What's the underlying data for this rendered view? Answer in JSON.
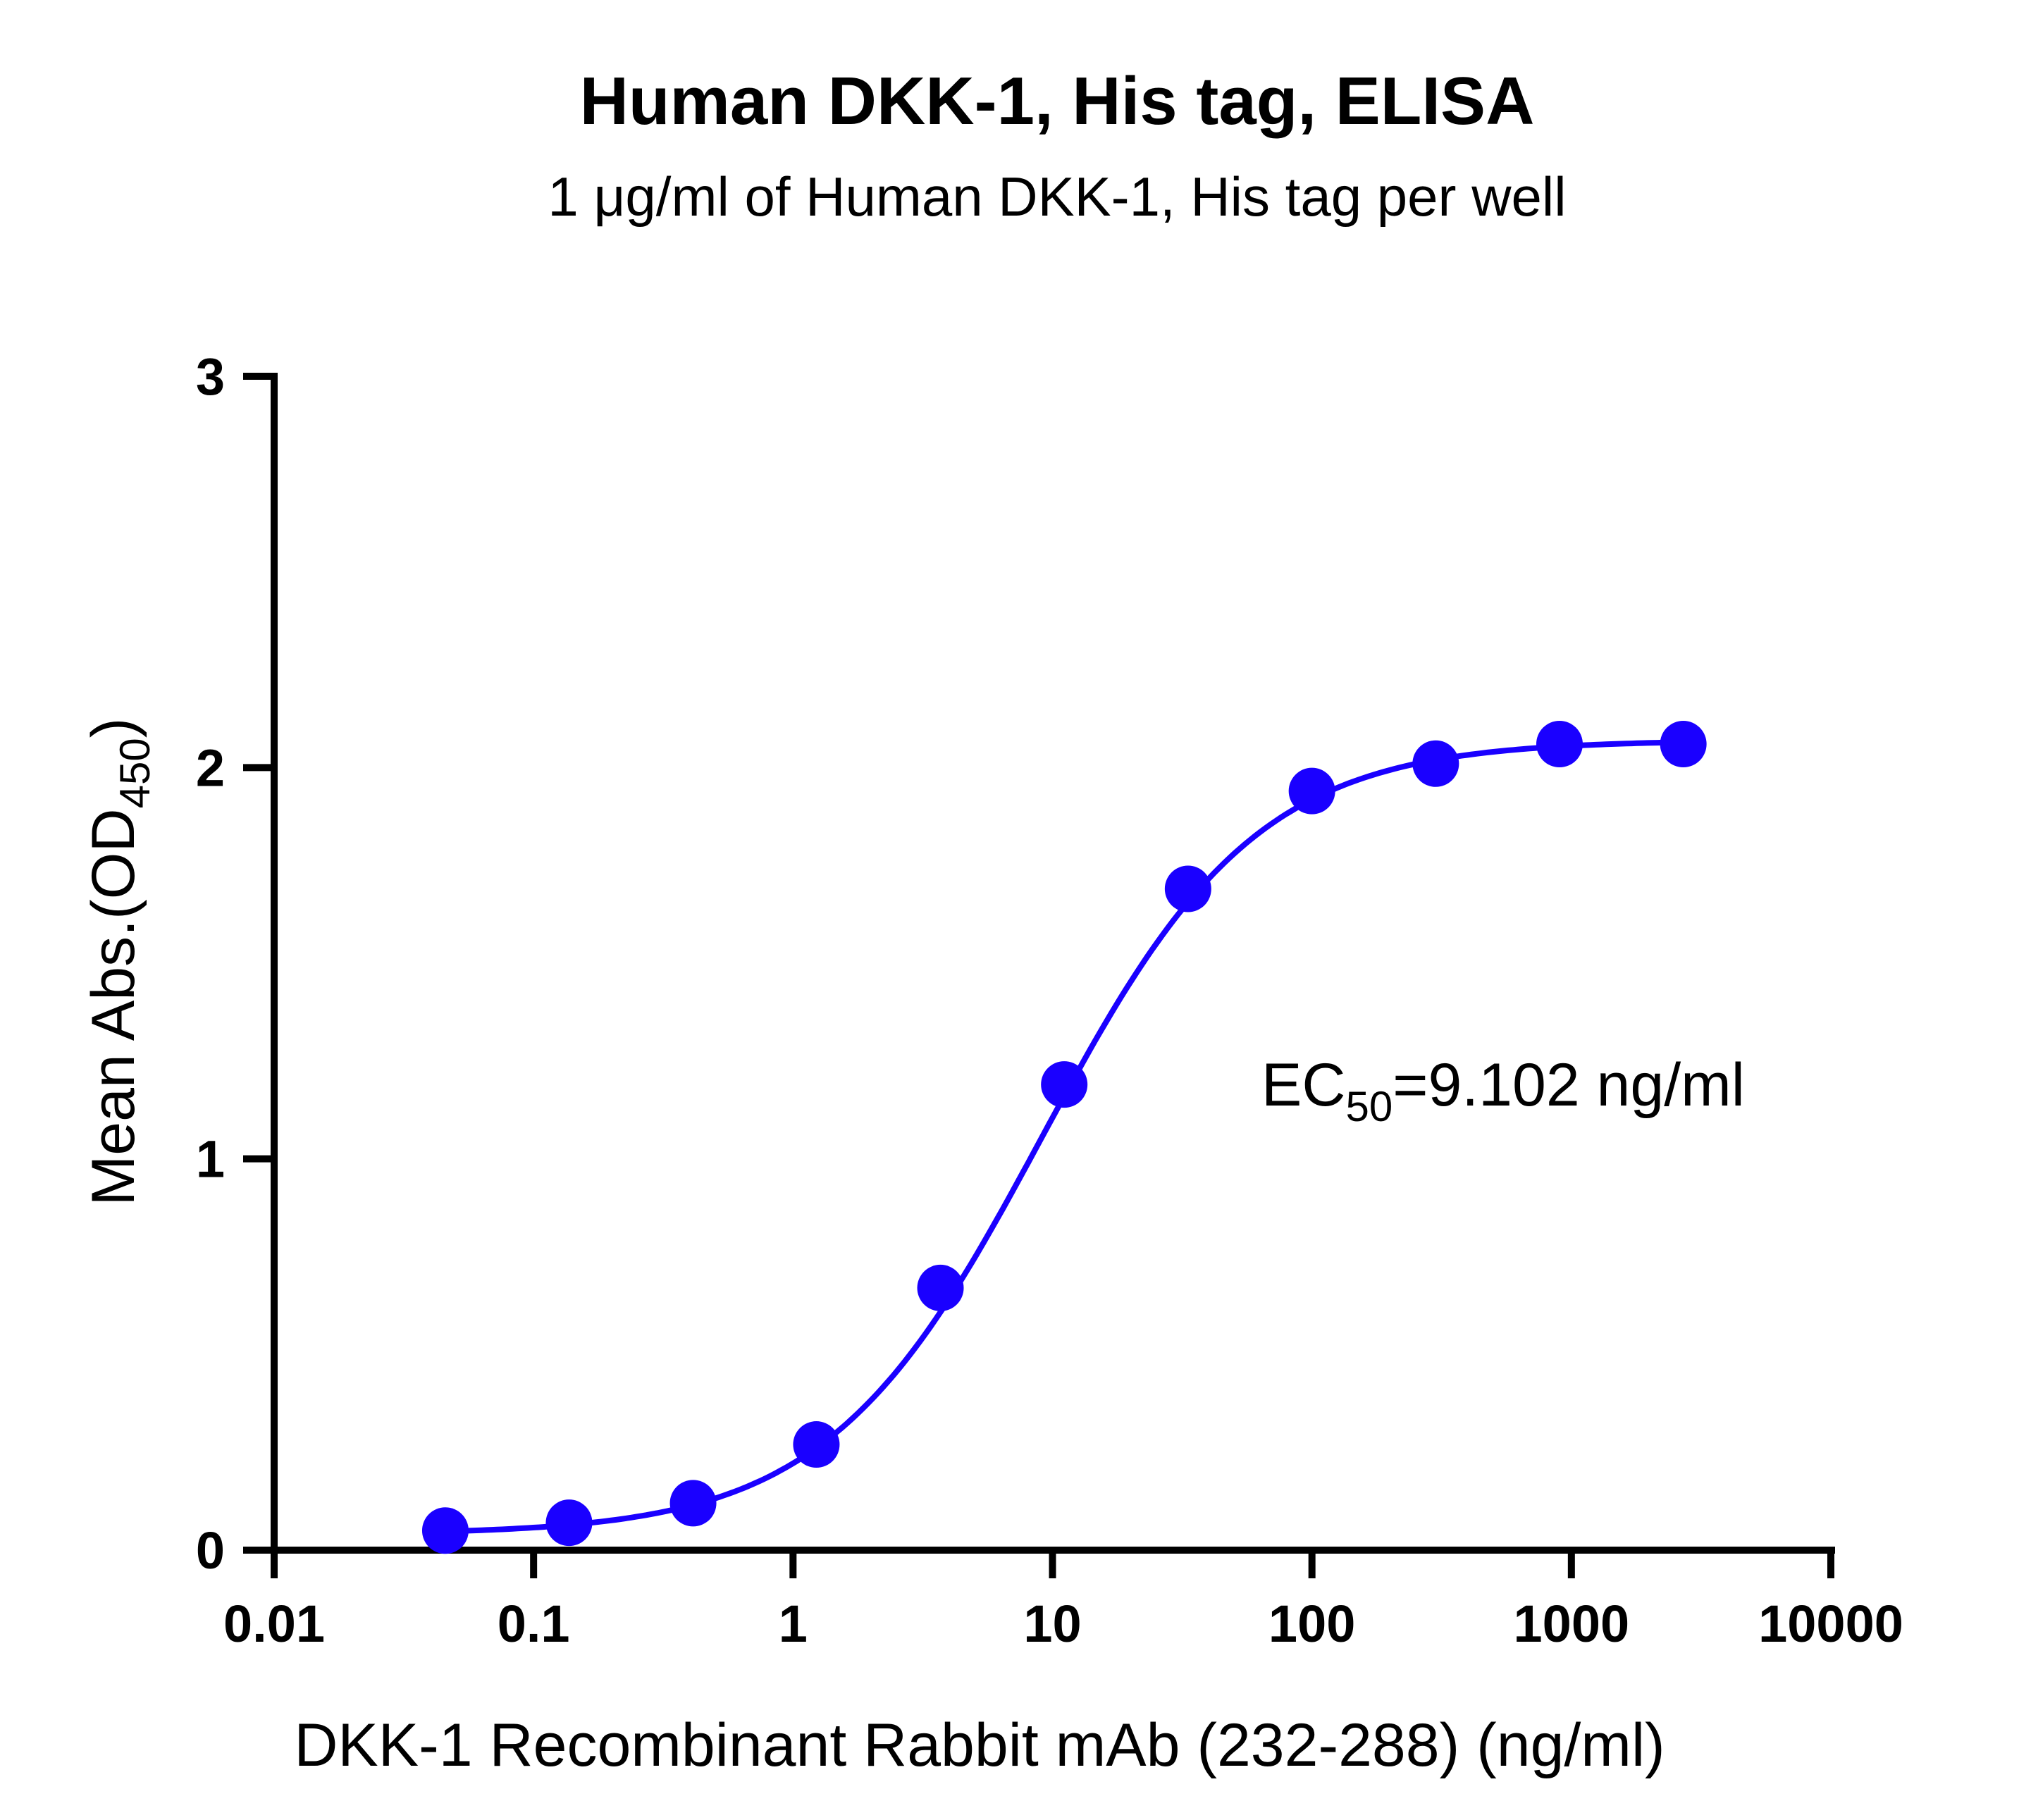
{
  "chart_data": {
    "type": "scatter",
    "title": "Human DKK-1, His tag, ELISA",
    "subtitle": "1 μg/ml of Human DKK-1, His tag per well",
    "xlabel": "DKK-1 Recombinant Rabbit mAb (232-288) (ng/ml)",
    "ylabel_main": "Mean Abs.(OD",
    "ylabel_sub": "450",
    "ylabel_end": ")",
    "x_scale": "log",
    "xlim": [
      0.01,
      10000
    ],
    "ylim": [
      0,
      3
    ],
    "x_ticks": [
      0.01,
      0.1,
      1,
      10,
      100,
      1000,
      10000
    ],
    "x_tick_labels": [
      "0.01",
      "0.1",
      "1",
      "10",
      "100",
      "1000",
      "10000"
    ],
    "y_ticks": [
      0,
      1,
      2,
      3
    ],
    "y_tick_labels": [
      "0",
      "1",
      "2",
      "3"
    ],
    "grid": false,
    "series": [
      {
        "color": "#1a00ff",
        "x": [
          0.0457,
          0.137,
          0.412,
          1.23,
          3.7,
          11.1,
          33.3,
          100,
          300,
          900,
          2700
        ],
        "y": [
          0.05,
          0.07,
          0.12,
          0.27,
          0.67,
          1.19,
          1.69,
          1.94,
          2.01,
          2.06,
          2.06
        ]
      }
    ],
    "fit": {
      "model": "four-parameter logistic",
      "bottom": 0.04,
      "top": 2.07,
      "ec50": 9.102,
      "hill": 1.05
    },
    "annotation": {
      "prefix": "EC",
      "sub": "50",
      "suffix": "=9.102 ng/ml"
    }
  }
}
